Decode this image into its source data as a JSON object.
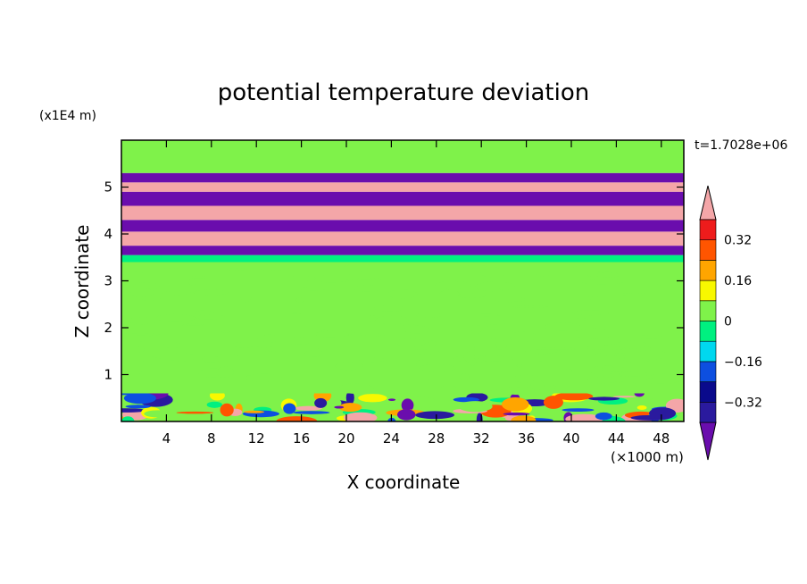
{
  "chart_data": {
    "type": "heatmap",
    "title": "potential temperature deviation",
    "xlabel": "X coordinate",
    "ylabel": "Z coordinate",
    "x_unit": "(×1000 m)",
    "y_unit": "(x1E4 m)",
    "time_label": "t=1.7028e+06",
    "xlim": [
      0,
      50
    ],
    "ylim": [
      0,
      6
    ],
    "x_ticks": [
      4,
      8,
      12,
      16,
      20,
      24,
      28,
      32,
      36,
      40,
      44,
      48
    ],
    "y_ticks": [
      1,
      2,
      3,
      4,
      5
    ],
    "colorbar": {
      "levels": [
        -0.48,
        -0.4,
        -0.32,
        -0.24,
        -0.16,
        -0.08,
        0,
        0.08,
        0.16,
        0.24,
        0.32,
        0.4
      ],
      "colors": [
        "#6a0dad",
        "#2a1a9e",
        "#0a0a8c",
        "#0d4fe0",
        "#00d8ef",
        "#00f080",
        "#7ff24a",
        "#f8f800",
        "#ffa500",
        "#ff5500",
        "#ee1c1c",
        "#f4a6a8"
      ],
      "tick_labels": [
        "-0.32",
        "-0.16",
        "0",
        "0.16",
        "0.32"
      ],
      "tick_values": [
        -0.32,
        -0.16,
        0,
        0.16,
        0.32
      ],
      "extend": "both"
    },
    "bands": [
      {
        "z": [
          0,
          0.6
        ],
        "value": 0.04,
        "pattern": "mixed"
      },
      {
        "z": [
          0.6,
          3.4
        ],
        "value": 0.02,
        "pattern": "speckle"
      },
      {
        "z": [
          3.4,
          3.55
        ],
        "value": -0.03
      },
      {
        "z": [
          3.55,
          3.75
        ],
        "value": -0.45
      },
      {
        "z": [
          3.75,
          4.05
        ],
        "value": 0.42
      },
      {
        "z": [
          4.05,
          4.3
        ],
        "value": -0.45
      },
      {
        "z": [
          4.3,
          4.6
        ],
        "value": 0.42
      },
      {
        "z": [
          4.6,
          4.9
        ],
        "value": -0.45
      },
      {
        "z": [
          4.9,
          5.1
        ],
        "value": 0.42
      },
      {
        "z": [
          5.1,
          5.3
        ],
        "value": -0.45
      },
      {
        "z": [
          5.3,
          6.0
        ],
        "value": 0.03
      }
    ]
  }
}
